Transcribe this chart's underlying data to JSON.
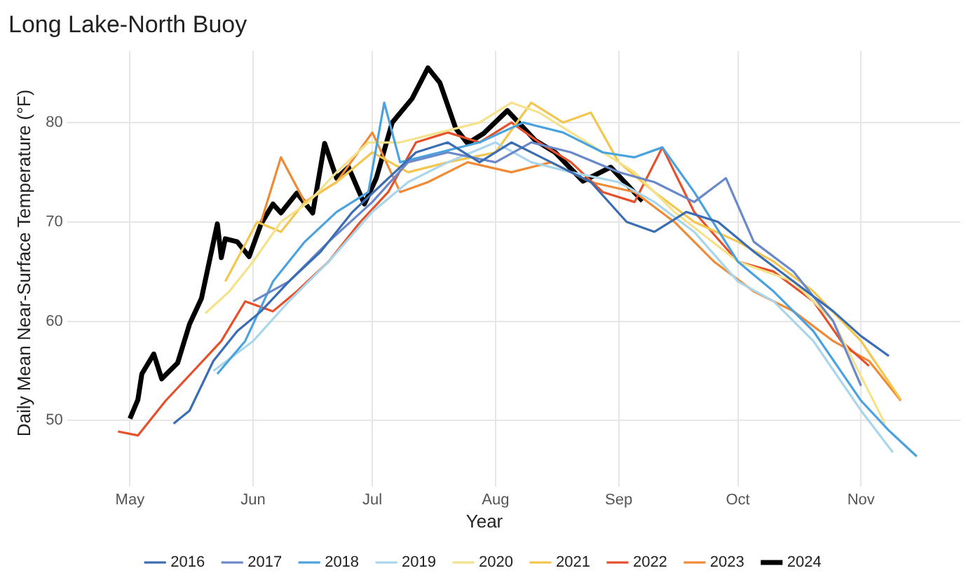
{
  "chart_data": {
    "type": "line",
    "title": "Long Lake-North Buoy",
    "ylabel": "Daily Mean Near-Surface Temperature (°F)",
    "legend_title": "Year",
    "legend": "bottom",
    "grid": true,
    "marker": "none",
    "line_style": "solid",
    "xlim": [
      "--04-18",
      "--11-26"
    ],
    "xticks": [
      {
        "value": "--05-01",
        "label": "May"
      },
      {
        "value": "--06-01",
        "label": "Jun"
      },
      {
        "value": "--07-01",
        "label": "Jul"
      },
      {
        "value": "--08-01",
        "label": "Aug"
      },
      {
        "value": "--09-01",
        "label": "Sep"
      },
      {
        "value": "--10-01",
        "label": "Oct"
      },
      {
        "value": "--11-01",
        "label": "Nov"
      }
    ],
    "ylim": [
      44.5,
      87.2
    ],
    "yticks": [
      50,
      60,
      70,
      80
    ],
    "series": [
      {
        "name": "2016",
        "color": "#3b6db3",
        "x": [
          "--05-12",
          "--05-16",
          "--05-22",
          "--05-28",
          "--06-03",
          "--06-10",
          "--06-18",
          "--06-26",
          "--07-04",
          "--07-12",
          "--07-20",
          "--07-28",
          "--08-05",
          "--08-15",
          "--08-25",
          "--09-03",
          "--09-10",
          "--09-18",
          "--09-26",
          "--10-05",
          "--10-15",
          "--10-25",
          "--11-01",
          "--11-08"
        ],
        "values": [
          49.7,
          51,
          56,
          59,
          61,
          64,
          67,
          71,
          74,
          77,
          78,
          76,
          78,
          76,
          74,
          70,
          69,
          71,
          70,
          67,
          64,
          61,
          58.5,
          56.5
        ]
      },
      {
        "name": "2017",
        "color": "#6b88c8",
        "x": [
          "--06-01",
          "--06-10",
          "--06-20",
          "--07-01",
          "--07-10",
          "--07-20",
          "--08-01",
          "--08-10",
          "--08-20",
          "--09-01",
          "--09-10",
          "--09-20",
          "--09-28",
          "--10-05",
          "--10-15",
          "--10-25",
          "--11-01"
        ],
        "values": [
          62,
          64,
          68,
          72,
          76,
          77,
          76,
          78,
          77,
          75,
          74,
          72,
          74.4,
          68,
          65,
          60,
          53.5
        ]
      },
      {
        "name": "2018",
        "color": "#4aa3df",
        "x": [
          "--05-23",
          "--05-30",
          "--06-06",
          "--06-14",
          "--06-22",
          "--06-30",
          "--07-04",
          "--07-08",
          "--07-18",
          "--07-28",
          "--08-08",
          "--08-18",
          "--08-28",
          "--09-05",
          "--09-12",
          "--09-20",
          "--10-01",
          "--10-10",
          "--10-20",
          "--11-01",
          "--11-08",
          "--11-15"
        ],
        "values": [
          54.7,
          58,
          64,
          68,
          71,
          73,
          82,
          76,
          77,
          78,
          80,
          79,
          77,
          76.5,
          77.5,
          73,
          66,
          63,
          59,
          52,
          49,
          46.4
        ]
      },
      {
        "name": "2019",
        "color": "#a9d6ea",
        "x": [
          "--05-22",
          "--06-01",
          "--06-10",
          "--06-20",
          "--07-01",
          "--07-10",
          "--07-20",
          "--08-01",
          "--08-10",
          "--08-20",
          "--09-01",
          "--09-10",
          "--09-20",
          "--10-01",
          "--10-10",
          "--10-20",
          "--11-01",
          "--11-09"
        ],
        "values": [
          55,
          58,
          62,
          66,
          71,
          74,
          76,
          78,
          76,
          75,
          74,
          72,
          69,
          64,
          62,
          58,
          51,
          46.8
        ]
      },
      {
        "name": "2020",
        "color": "#f5e28c",
        "x": [
          "--05-20",
          "--05-26",
          "--06-01",
          "--06-08",
          "--06-15",
          "--06-22",
          "--06-30",
          "--07-08",
          "--07-18",
          "--07-28",
          "--08-05",
          "--08-12",
          "--08-20",
          "--08-28",
          "--09-05",
          "--09-15",
          "--10-01",
          "--10-15",
          "--10-25",
          "--11-07"
        ],
        "values": [
          60.8,
          63,
          66,
          70,
          72,
          75,
          78,
          78,
          79,
          80,
          82,
          81,
          79,
          77,
          75,
          71,
          66,
          64,
          60,
          49.7
        ]
      },
      {
        "name": "2021",
        "color": "#f3c74f",
        "x": [
          "--05-25",
          "--06-02",
          "--06-08",
          "--06-14",
          "--06-22",
          "--07-01",
          "--07-10",
          "--07-20",
          "--08-01",
          "--08-10",
          "--08-18",
          "--08-25",
          "--09-01",
          "--09-10",
          "--09-20",
          "--10-01",
          "--10-10",
          "--10-20",
          "--11-01",
          "--11-11"
        ],
        "values": [
          64,
          70,
          69,
          72,
          74,
          77,
          75,
          76,
          77,
          82,
          80,
          81,
          76,
          73,
          70,
          68,
          66,
          63,
          58,
          52.1
        ]
      },
      {
        "name": "2022",
        "color": "#e6502a",
        "x": [
          "--04-28",
          "--05-03",
          "--05-10",
          "--05-17",
          "--05-24",
          "--05-30",
          "--06-06",
          "--06-12",
          "--06-20",
          "--06-28",
          "--07-05",
          "--07-12",
          "--07-20",
          "--07-28",
          "--08-05",
          "--08-12",
          "--08-20",
          "--08-28",
          "--09-05",
          "--09-12",
          "--09-20",
          "--10-01",
          "--10-10",
          "--10-20",
          "--10-27",
          "--11-03"
        ],
        "values": [
          48.9,
          48.5,
          52,
          55,
          58,
          62,
          61,
          63,
          66,
          70,
          73,
          78,
          79,
          78,
          80,
          78,
          76,
          73,
          72,
          77.5,
          71,
          66,
          65,
          62,
          58,
          55.5
        ]
      },
      {
        "name": "2023",
        "color": "#f08a35",
        "x": [
          "--06-03",
          "--06-08",
          "--06-14",
          "--06-22",
          "--07-01",
          "--07-08",
          "--07-15",
          "--07-25",
          "--08-05",
          "--08-15",
          "--08-25",
          "--09-05",
          "--09-15",
          "--09-25",
          "--10-05",
          "--10-15",
          "--10-25",
          "--11-03",
          "--11-11"
        ],
        "values": [
          70,
          76.5,
          72,
          74,
          79,
          73,
          74,
          76,
          75,
          76,
          74,
          73,
          70,
          66,
          63,
          61,
          58,
          56,
          52
        ]
      },
      {
        "name": "2024",
        "color": "#000000",
        "x": [
          "--05-01",
          "--05-03",
          "--05-04",
          "--05-07",
          "--05-09",
          "--05-13",
          "--05-16",
          "--05-19",
          "--05-23",
          "--05-24",
          "--05-25",
          "--05-28",
          "--05-31",
          "--06-03",
          "--06-06",
          "--06-08",
          "--06-12",
          "--06-16",
          "--06-19",
          "--06-22",
          "--06-25",
          "--06-29",
          "--07-02",
          "--07-06",
          "--07-11",
          "--07-15",
          "--07-18",
          "--07-22",
          "--07-25",
          "--07-29",
          "--08-04",
          "--08-11",
          "--08-16",
          "--08-23",
          "--08-30",
          "--09-07"
        ],
        "values": [
          50.2,
          52.1,
          54.7,
          56.7,
          54.2,
          55.8,
          59.7,
          62.3,
          69.8,
          66.4,
          68.3,
          68,
          66.5,
          69.8,
          71.8,
          70.9,
          72.9,
          70.9,
          77.9,
          74.4,
          75.5,
          71.8,
          74.4,
          80,
          82.4,
          85.5,
          84,
          79.4,
          77.9,
          78.9,
          81.2,
          78.2,
          77,
          74.1,
          75.5,
          72.1
        ]
      }
    ]
  }
}
